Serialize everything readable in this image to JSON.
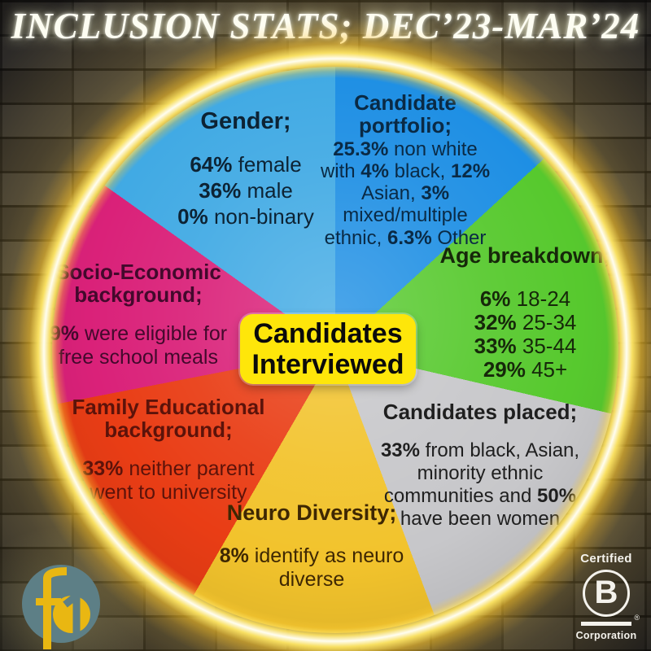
{
  "title": "INCLUSION STATS; DEC’23-MAR’24",
  "center_badge": {
    "lines": [
      "Candidates",
      "Interviewed"
    ],
    "bg_color": "#fee60a"
  },
  "theme": {
    "neon_ring_color": "#ffe96a",
    "wall_color": "#46433f",
    "title_color": "#fdfdf2"
  },
  "chart_data": {
    "type": "pie",
    "title": "INCLUSION STATS; DEC’23-MAR’24",
    "center_label": "Candidates Interviewed",
    "legend_position": "labels-on-slices",
    "segments": [
      {
        "name": "candidate-portfolio",
        "heading": "Candidate portfolio;",
        "color": "#1e8fe4",
        "text_color": "#0a2a45",
        "start_angle": 0,
        "end_angle": 47.5,
        "lines": [
          [
            {
              "text": "25.3%",
              "bold": true
            },
            {
              "text": " non white with "
            },
            {
              "text": "4%",
              "bold": true
            },
            {
              "text": " black, "
            },
            {
              "text": "12%",
              "bold": true
            },
            {
              "text": " Asian, "
            },
            {
              "text": "3%",
              "bold": true
            },
            {
              "text": " mixed/multiple ethnic, "
            },
            {
              "text": "6.3%",
              "bold": true
            },
            {
              "text": " Other"
            }
          ]
        ]
      },
      {
        "name": "age-breakdown",
        "heading": "Age breakdown;",
        "color": "#57c92e",
        "text_color": "#16280a",
        "start_angle": 47.5,
        "end_angle": 103,
        "lines": [
          [
            {
              "text": "6%",
              "bold": true
            },
            {
              "text": " 18-24"
            }
          ],
          [
            {
              "text": "32%",
              "bold": true
            },
            {
              "text": " 25-34"
            }
          ],
          [
            {
              "text": "33%",
              "bold": true
            },
            {
              "text": " 35-44"
            }
          ],
          [
            {
              "text": "29%",
              "bold": true
            },
            {
              "text": " 45+"
            }
          ]
        ]
      },
      {
        "name": "candidates-placed",
        "heading": "Candidates placed;",
        "color": "#c7c7ca",
        "text_color": "#1f1f1f",
        "start_angle": 103,
        "end_angle": 159.5,
        "lines": [
          [
            {
              "text": "33%",
              "bold": true
            },
            {
              "text": " from black, Asian, minority ethnic communities and "
            },
            {
              "text": "50%",
              "bold": true
            },
            {
              "text": " have been women"
            }
          ]
        ]
      },
      {
        "name": "neuro-diversity",
        "heading": "Neuro Diversity;",
        "color": "#f2c32c",
        "text_color": "#3e2703",
        "start_angle": 159.5,
        "end_angle": 210,
        "lines": [
          [
            {
              "text": "8%",
              "bold": true
            },
            {
              "text": " identify as neuro diverse"
            }
          ]
        ]
      },
      {
        "name": "family-educational-background",
        "heading": "Family Educational background;",
        "color": "#e93d15",
        "text_color": "#5c130a",
        "start_angle": 210,
        "end_angle": 259,
        "lines": [
          [
            {
              "text": "33%",
              "bold": true
            },
            {
              "text": " neither parent went to university"
            }
          ]
        ]
      },
      {
        "name": "socio-economic-background",
        "heading": "Socio-Economic background;",
        "color": "#da2179",
        "text_color": "#43092c",
        "start_angle": 259,
        "end_angle": 305.5,
        "lines": [
          [
            {
              "text": "9%",
              "bold": true
            },
            {
              "text": " were eligible for free school meals"
            }
          ]
        ]
      },
      {
        "name": "gender",
        "heading": "Gender;",
        "color": "#41aae4",
        "text_color": "#0d2334",
        "start_angle": 305.5,
        "end_angle": 360,
        "lines": [
          [
            {
              "text": "64%",
              "bold": true
            },
            {
              "text": " female"
            }
          ],
          [
            {
              "text": "36%",
              "bold": true
            },
            {
              "text": " male"
            }
          ],
          [
            {
              "text": "0%",
              "bold": true
            },
            {
              "text": " non-binary"
            }
          ]
        ]
      }
    ]
  },
  "logos": {
    "f_mark": {
      "circle_color": "#5d7f86",
      "glyph_color": "#e9b randomly712"
    },
    "b_corp": {
      "certified": "Certified",
      "letter": "B",
      "registered": "®",
      "corporation": "Corporation"
    }
  }
}
